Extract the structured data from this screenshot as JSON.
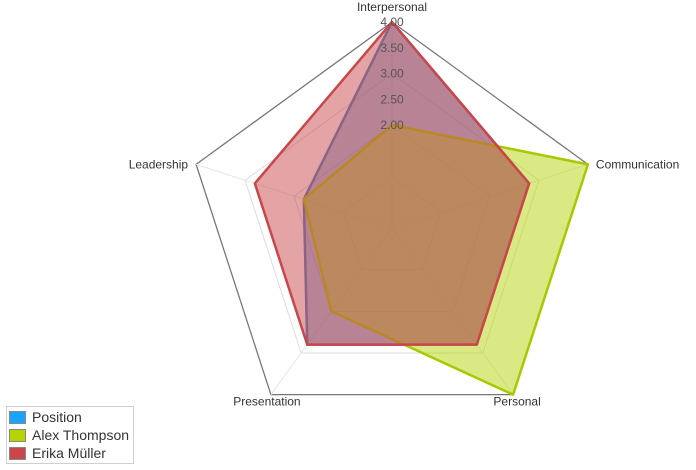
{
  "chart_data": {
    "type": "radar",
    "axes": [
      "Interpersonal",
      "Communication",
      "Personal",
      "Presentation",
      "Leadership"
    ],
    "scale": {
      "min": 0,
      "max": 4,
      "ticks": [
        "2.00",
        "2.50",
        "3.00",
        "3.50",
        "4.00"
      ],
      "tick_values": [
        2.0,
        2.5,
        3.0,
        3.5,
        4.0
      ]
    },
    "grid_levels": [
      1,
      2,
      3,
      4
    ],
    "series": [
      {
        "name": "Position",
        "values": [
          4.0,
          2.8,
          2.8,
          2.8,
          1.8
        ],
        "color": "#4a7fc1",
        "fill": "#4a7fc1"
      },
      {
        "name": "Alex Thompson",
        "values": [
          2.0,
          4.0,
          4.0,
          2.0,
          1.8
        ],
        "color": "#a8c800",
        "fill": "#b8d40a"
      },
      {
        "name": "Erika Müller",
        "values": [
          4.0,
          2.8,
          2.8,
          2.8,
          2.8
        ],
        "color": "#c9474a",
        "fill": "#c9474a"
      }
    ],
    "legend": {
      "position": "bottom-left"
    }
  },
  "legend_swatch_colors": [
    "#1aa3ff",
    "#b8d400",
    "#c9474a"
  ]
}
